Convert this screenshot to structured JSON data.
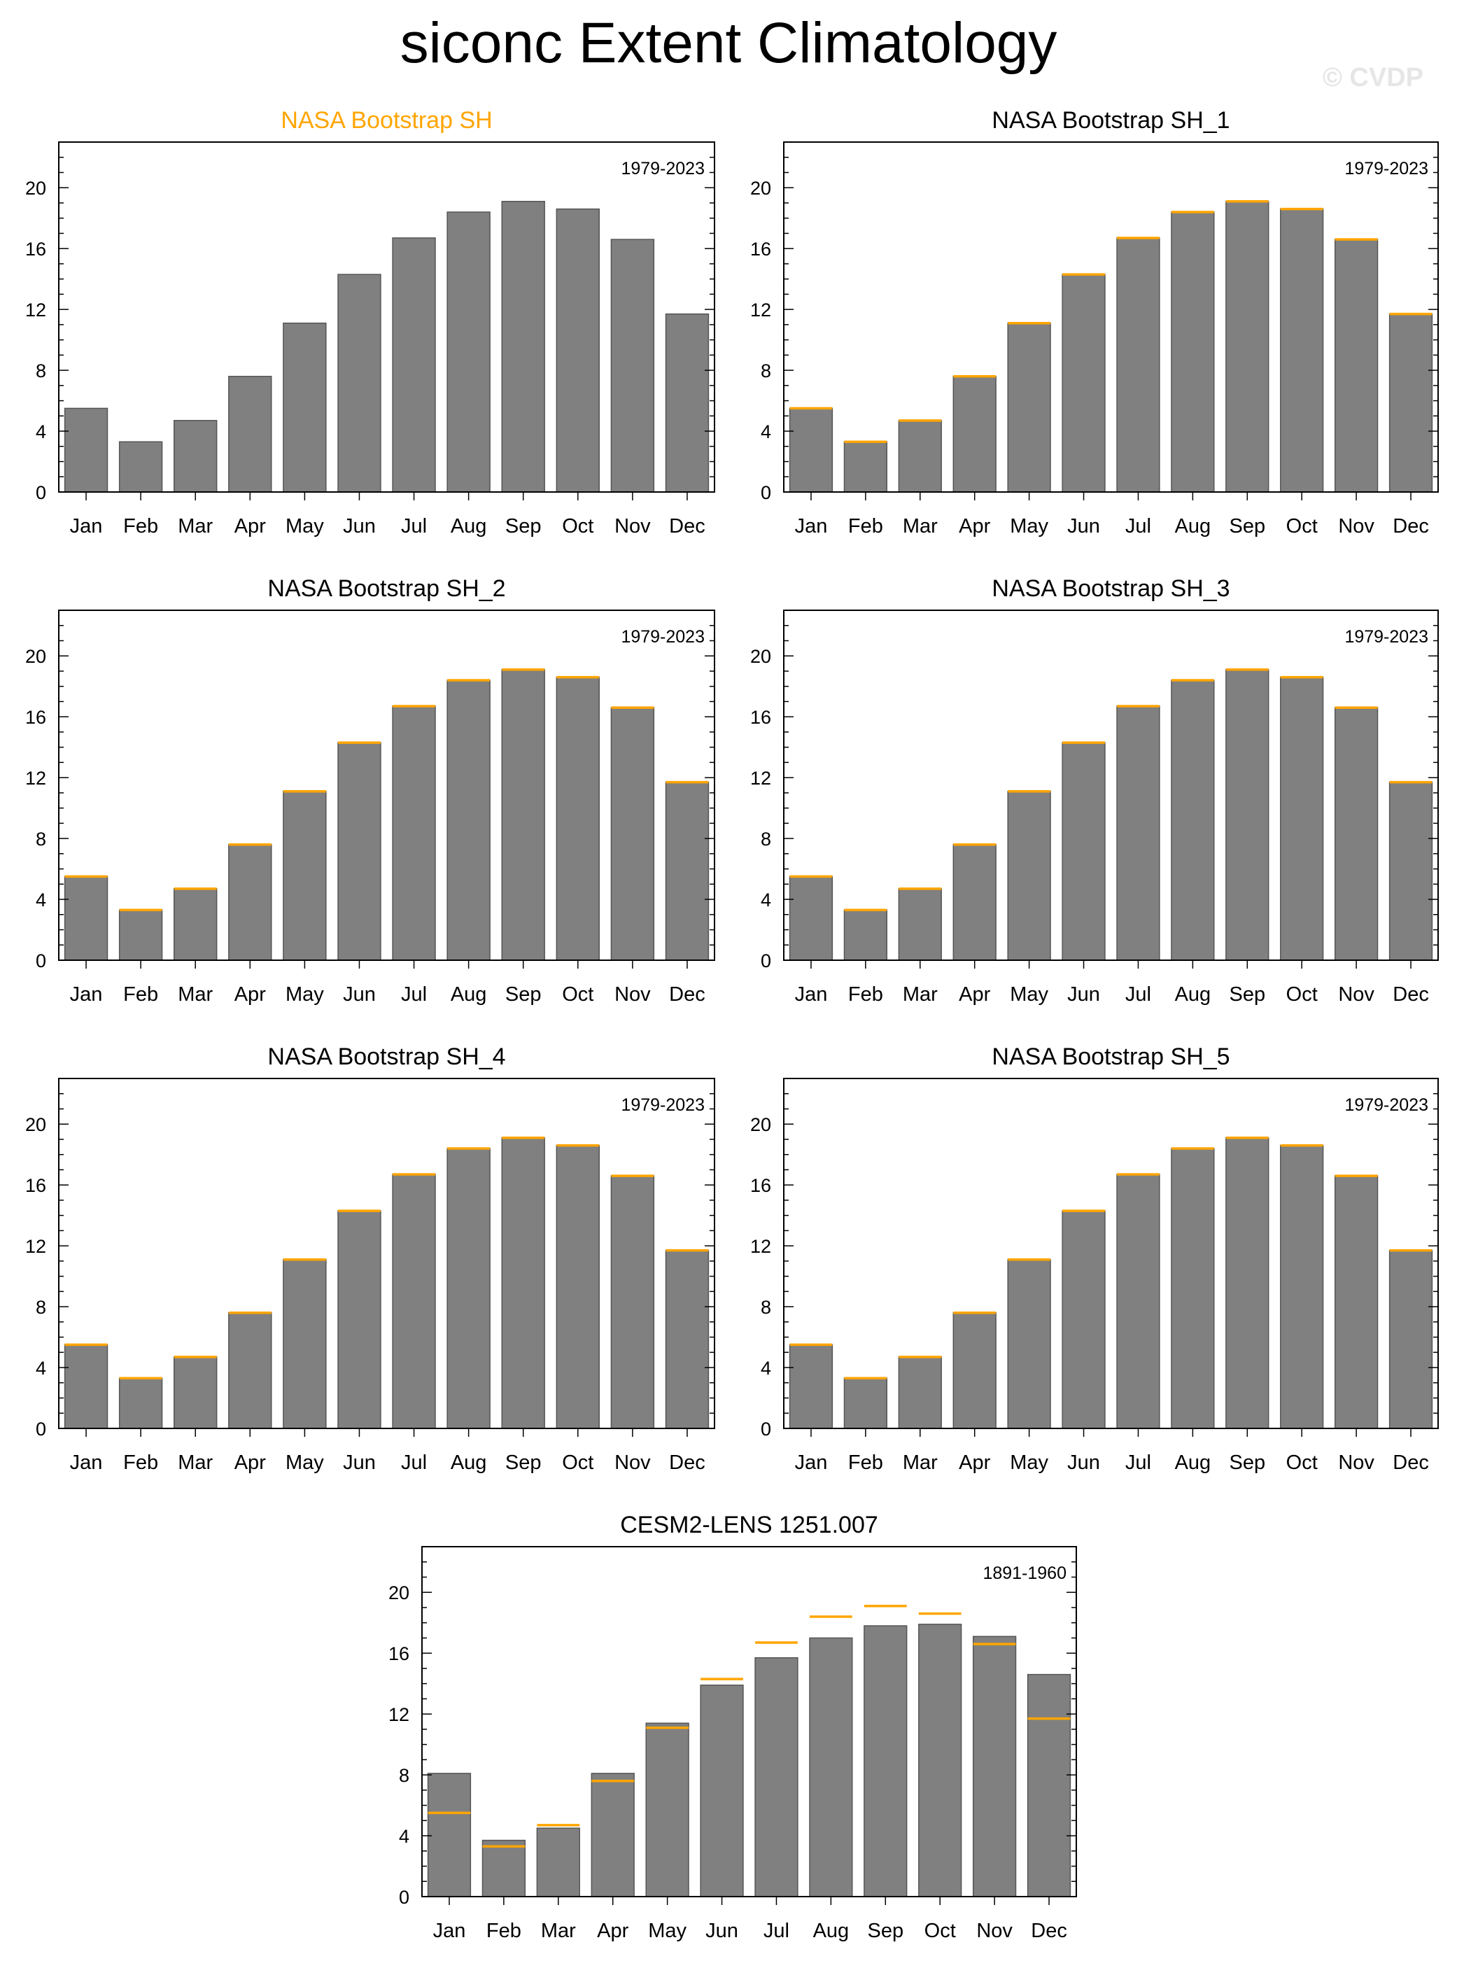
{
  "page": {
    "title": "siconc Extent Climatology",
    "watermark": "© CVDP"
  },
  "colors": {
    "bar_fill": "#808080",
    "bar_stroke": "#555555",
    "reference_line": "#ffa500",
    "highlight_title": "#ffa500",
    "axis": "#000000"
  },
  "chart_data": [
    {
      "type": "bar",
      "title": "NASA Bootstrap SH",
      "title_highlight": true,
      "period": "1979-2023",
      "categories": [
        "Jan",
        "Feb",
        "Mar",
        "Apr",
        "May",
        "Jun",
        "Jul",
        "Aug",
        "Sep",
        "Oct",
        "Nov",
        "Dec"
      ],
      "values": [
        5.5,
        3.3,
        4.7,
        7.6,
        11.1,
        14.3,
        16.7,
        18.4,
        19.1,
        18.6,
        16.6,
        11.7
      ],
      "reference": null,
      "yticks": [
        0,
        4,
        8,
        12,
        16,
        20
      ],
      "ylim": [
        0,
        23
      ]
    },
    {
      "type": "bar",
      "title": "NASA Bootstrap SH_1",
      "title_highlight": false,
      "period": "1979-2023",
      "categories": [
        "Jan",
        "Feb",
        "Mar",
        "Apr",
        "May",
        "Jun",
        "Jul",
        "Aug",
        "Sep",
        "Oct",
        "Nov",
        "Dec"
      ],
      "values": [
        5.5,
        3.3,
        4.7,
        7.6,
        11.1,
        14.3,
        16.7,
        18.4,
        19.1,
        18.6,
        16.6,
        11.7
      ],
      "reference": [
        5.5,
        3.3,
        4.7,
        7.6,
        11.1,
        14.3,
        16.7,
        18.4,
        19.1,
        18.6,
        16.6,
        11.7
      ],
      "yticks": [
        0,
        4,
        8,
        12,
        16,
        20
      ],
      "ylim": [
        0,
        23
      ]
    },
    {
      "type": "bar",
      "title": "NASA Bootstrap SH_2",
      "title_highlight": false,
      "period": "1979-2023",
      "categories": [
        "Jan",
        "Feb",
        "Mar",
        "Apr",
        "May",
        "Jun",
        "Jul",
        "Aug",
        "Sep",
        "Oct",
        "Nov",
        "Dec"
      ],
      "values": [
        5.5,
        3.3,
        4.7,
        7.6,
        11.1,
        14.3,
        16.7,
        18.4,
        19.1,
        18.6,
        16.6,
        11.7
      ],
      "reference": [
        5.5,
        3.3,
        4.7,
        7.6,
        11.1,
        14.3,
        16.7,
        18.4,
        19.1,
        18.6,
        16.6,
        11.7
      ],
      "yticks": [
        0,
        4,
        8,
        12,
        16,
        20
      ],
      "ylim": [
        0,
        23
      ]
    },
    {
      "type": "bar",
      "title": "NASA Bootstrap SH_3",
      "title_highlight": false,
      "period": "1979-2023",
      "categories": [
        "Jan",
        "Feb",
        "Mar",
        "Apr",
        "May",
        "Jun",
        "Jul",
        "Aug",
        "Sep",
        "Oct",
        "Nov",
        "Dec"
      ],
      "values": [
        5.5,
        3.3,
        4.7,
        7.6,
        11.1,
        14.3,
        16.7,
        18.4,
        19.1,
        18.6,
        16.6,
        11.7
      ],
      "reference": [
        5.5,
        3.3,
        4.7,
        7.6,
        11.1,
        14.3,
        16.7,
        18.4,
        19.1,
        18.6,
        16.6,
        11.7
      ],
      "yticks": [
        0,
        4,
        8,
        12,
        16,
        20
      ],
      "ylim": [
        0,
        23
      ]
    },
    {
      "type": "bar",
      "title": "NASA Bootstrap SH_4",
      "title_highlight": false,
      "period": "1979-2023",
      "categories": [
        "Jan",
        "Feb",
        "Mar",
        "Apr",
        "May",
        "Jun",
        "Jul",
        "Aug",
        "Sep",
        "Oct",
        "Nov",
        "Dec"
      ],
      "values": [
        5.5,
        3.3,
        4.7,
        7.6,
        11.1,
        14.3,
        16.7,
        18.4,
        19.1,
        18.6,
        16.6,
        11.7
      ],
      "reference": [
        5.5,
        3.3,
        4.7,
        7.6,
        11.1,
        14.3,
        16.7,
        18.4,
        19.1,
        18.6,
        16.6,
        11.7
      ],
      "yticks": [
        0,
        4,
        8,
        12,
        16,
        20
      ],
      "ylim": [
        0,
        23
      ]
    },
    {
      "type": "bar",
      "title": "NASA Bootstrap SH_5",
      "title_highlight": false,
      "period": "1979-2023",
      "categories": [
        "Jan",
        "Feb",
        "Mar",
        "Apr",
        "May",
        "Jun",
        "Jul",
        "Aug",
        "Sep",
        "Oct",
        "Nov",
        "Dec"
      ],
      "values": [
        5.5,
        3.3,
        4.7,
        7.6,
        11.1,
        14.3,
        16.7,
        18.4,
        19.1,
        18.6,
        16.6,
        11.7
      ],
      "reference": [
        5.5,
        3.3,
        4.7,
        7.6,
        11.1,
        14.3,
        16.7,
        18.4,
        19.1,
        18.6,
        16.6,
        11.7
      ],
      "yticks": [
        0,
        4,
        8,
        12,
        16,
        20
      ],
      "ylim": [
        0,
        23
      ]
    },
    {
      "type": "bar",
      "title": "CESM2-LENS 1251.007",
      "title_highlight": false,
      "period": "1891-1960",
      "categories": [
        "Jan",
        "Feb",
        "Mar",
        "Apr",
        "May",
        "Jun",
        "Jul",
        "Aug",
        "Sep",
        "Oct",
        "Nov",
        "Dec"
      ],
      "values": [
        8.1,
        3.7,
        4.5,
        8.1,
        11.4,
        13.9,
        15.7,
        17.0,
        17.8,
        17.9,
        17.1,
        14.6
      ],
      "reference": [
        5.5,
        3.3,
        4.7,
        7.6,
        11.1,
        14.3,
        16.7,
        18.4,
        19.1,
        18.6,
        16.6,
        11.7
      ],
      "yticks": [
        0,
        4,
        8,
        12,
        16,
        20
      ],
      "ylim": [
        0,
        23
      ]
    }
  ]
}
